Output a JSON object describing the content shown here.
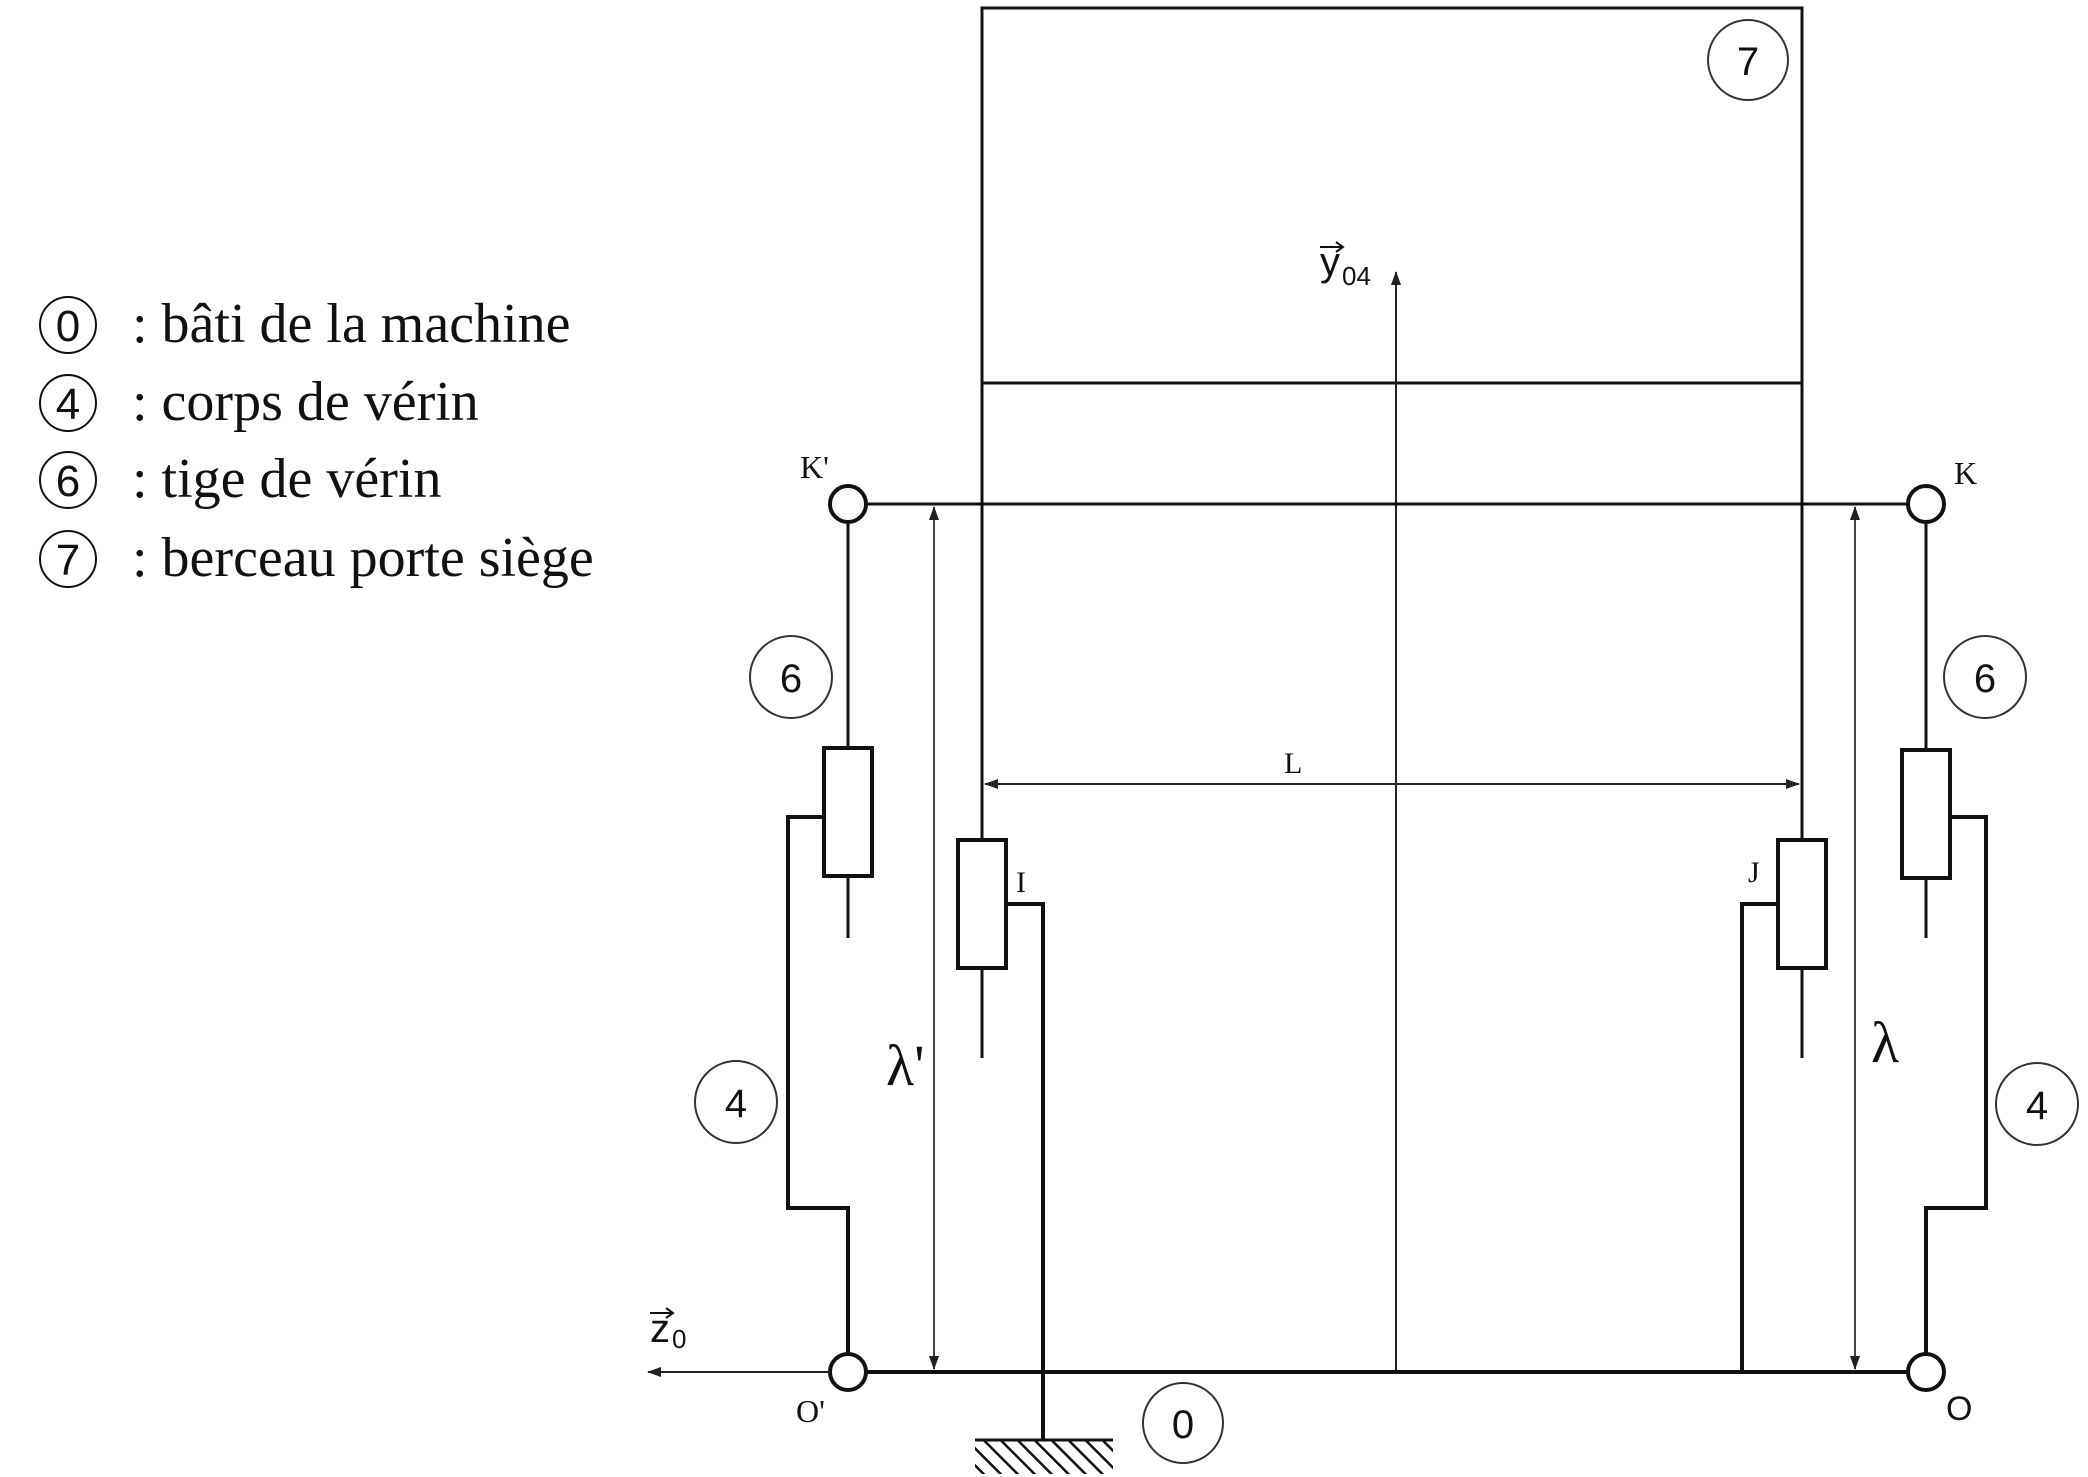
{
  "legend": [
    {
      "num": "0",
      "text": ": bâti de la machine"
    },
    {
      "num": "4",
      "text": ": corps de vérin"
    },
    {
      "num": "6",
      "text": ": tige de vérin"
    },
    {
      "num": "7",
      "text": ": berceau porte siège"
    }
  ],
  "parts": {
    "cradle": "7",
    "rod_left": "6",
    "rod_right": "6",
    "body_left": "4",
    "body_right": "4",
    "frame": "0"
  },
  "points": {
    "k_prime": "K'",
    "k": "K",
    "o_prime": "O'",
    "o": "O",
    "i": "I",
    "j": "J"
  },
  "dimensions": {
    "l": "L",
    "lambda_left": "λ'",
    "lambda_right": "λ"
  },
  "axes": {
    "y_letter": "y",
    "y_sub": "04",
    "z_letter": "z",
    "z_sub": "0"
  },
  "colors": {
    "stroke": "#111111",
    "circle_stroke": "#333333",
    "dim_stroke": "#444444"
  }
}
